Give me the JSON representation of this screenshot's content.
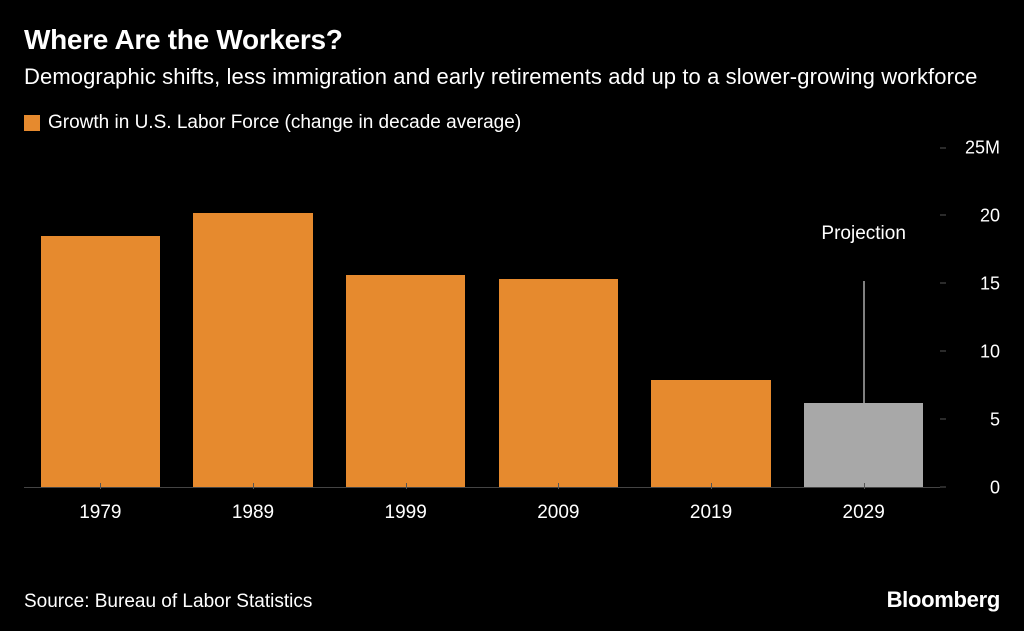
{
  "title": "Where Are the Workers?",
  "subtitle": "Demographic shifts, less immigration and early retirements add up to a slower-growing workforce",
  "legend": {
    "swatch_color": "#e68a2e",
    "label": "Growth in U.S. Labor Force (change in decade average)"
  },
  "chart": {
    "type": "bar",
    "background_color": "#000000",
    "bar_default_color": "#e68a2e",
    "bar_projection_color": "#a8a8a8",
    "axis_text_color": "#ffffff",
    "y": {
      "min": 0,
      "max": 25,
      "unit_suffix_top": "M",
      "ticks": [
        0,
        5,
        10,
        15,
        20,
        25
      ],
      "tick_labels": [
        "0",
        "5",
        "10",
        "15",
        "20",
        "25M"
      ]
    },
    "categories": [
      "1979",
      "1989",
      "1999",
      "2009",
      "2019",
      "2029"
    ],
    "values": [
      18.5,
      20.2,
      15.6,
      15.3,
      7.9,
      6.2
    ],
    "colors": [
      "#e68a2e",
      "#e68a2e",
      "#e68a2e",
      "#e68a2e",
      "#e68a2e",
      "#a8a8a8"
    ],
    "annotation": {
      "text": "Projection",
      "category_index": 5,
      "label_y_value": 17.5,
      "line_top_value": 15.2
    }
  },
  "footer": {
    "source": "Source: Bureau of Labor Statistics",
    "brand": "Bloomberg"
  }
}
